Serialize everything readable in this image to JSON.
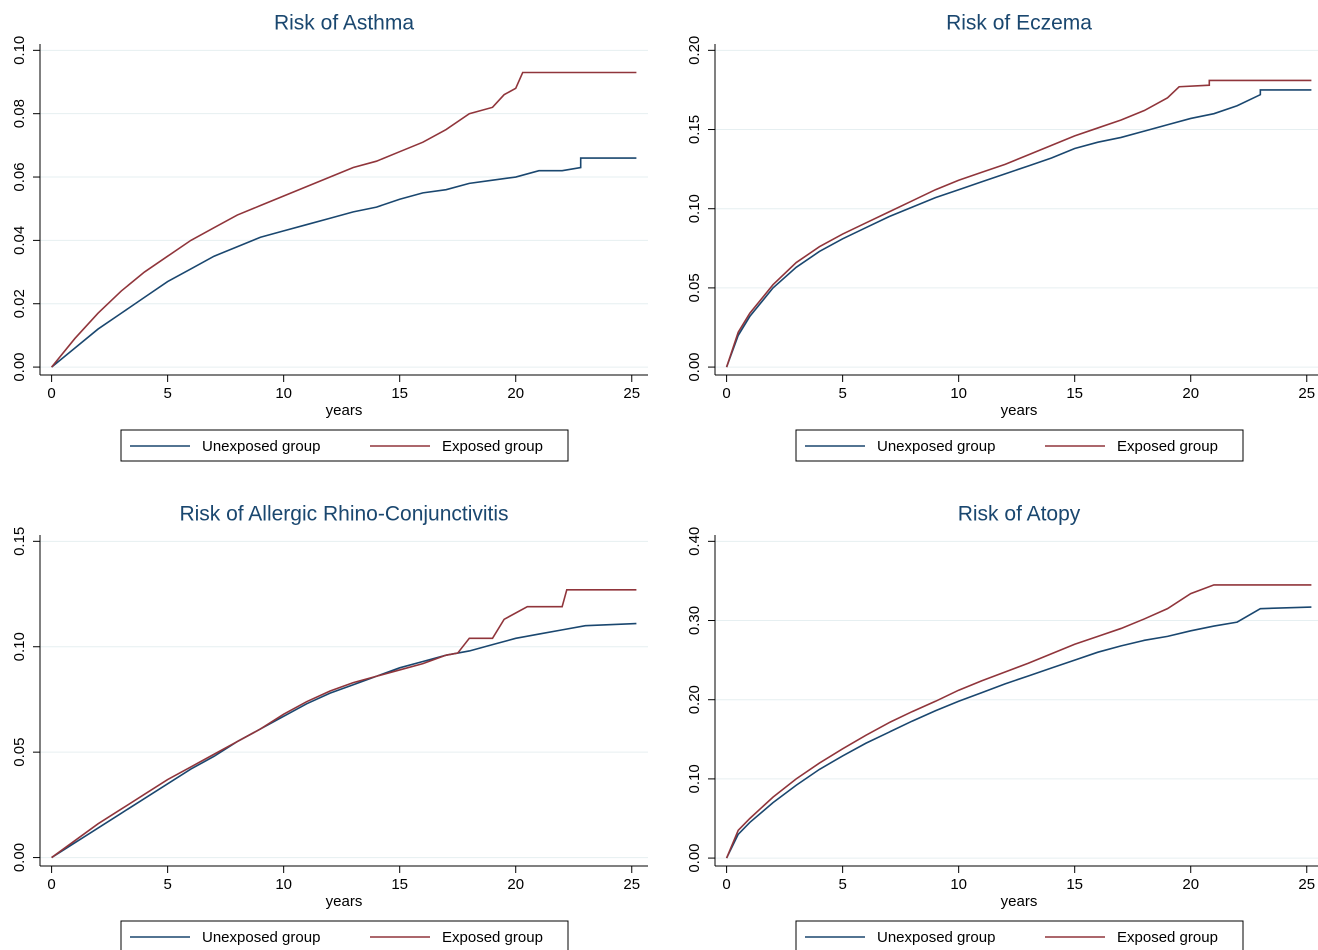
{
  "chart_data": [
    {
      "type": "line",
      "title": "Risk of Asthma",
      "x_label": "years",
      "xlim": [
        -0.5,
        25.7
      ],
      "xticks": [
        0,
        5,
        10,
        15,
        20,
        25
      ],
      "ylim": [
        -0.0025,
        0.102
      ],
      "yticks": [
        {
          "value": 0,
          "label": "0.00"
        },
        {
          "value": 0.02,
          "label": "0.02"
        },
        {
          "value": 0.04,
          "label": "0.04"
        },
        {
          "value": 0.06,
          "label": "0.06"
        },
        {
          "value": 0.08,
          "label": "0.08"
        },
        {
          "value": 0.1,
          "label": "0.10"
        }
      ],
      "grid": true,
      "series": [
        {
          "name": "Unexposed group",
          "color": "#1a476f",
          "x": [
            0,
            1,
            2,
            3,
            4,
            5,
            6,
            7,
            8,
            9,
            10,
            11,
            12,
            13,
            14,
            15,
            16,
            17,
            18,
            19,
            20,
            21,
            22,
            22.8,
            22.8,
            25.2
          ],
          "values": [
            0,
            0.006,
            0.012,
            0.017,
            0.022,
            0.027,
            0.031,
            0.035,
            0.038,
            0.041,
            0.043,
            0.045,
            0.047,
            0.049,
            0.0505,
            0.053,
            0.055,
            0.056,
            0.058,
            0.059,
            0.06,
            0.062,
            0.062,
            0.063,
            0.066,
            0.066
          ]
        },
        {
          "name": "Exposed group",
          "color": "#90353b",
          "x": [
            0,
            1,
            2,
            3,
            4,
            5,
            6,
            7,
            8,
            9,
            10,
            11,
            12,
            13,
            14,
            15,
            16,
            17,
            18,
            19,
            19.5,
            20,
            20.3,
            25.2
          ],
          "values": [
            0,
            0.009,
            0.017,
            0.024,
            0.03,
            0.035,
            0.04,
            0.044,
            0.048,
            0.051,
            0.054,
            0.057,
            0.06,
            0.063,
            0.065,
            0.068,
            0.071,
            0.075,
            0.08,
            0.082,
            0.086,
            0.088,
            0.093,
            0.093
          ]
        }
      ]
    },
    {
      "type": "line",
      "title": "Risk of Eczema",
      "x_label": "years",
      "xlim": [
        -0.5,
        25.7
      ],
      "xticks": [
        0,
        5,
        10,
        15,
        20,
        25
      ],
      "ylim": [
        -0.005,
        0.204
      ],
      "yticks": [
        {
          "value": 0,
          "label": "0.00"
        },
        {
          "value": 0.05,
          "label": "0.05"
        },
        {
          "value": 0.1,
          "label": "0.10"
        },
        {
          "value": 0.15,
          "label": "0.15"
        },
        {
          "value": 0.2,
          "label": "0.20"
        }
      ],
      "grid": true,
      "series": [
        {
          "name": "Unexposed group",
          "color": "#1a476f",
          "x": [
            0,
            0.5,
            1,
            2,
            3,
            4,
            5,
            6,
            7,
            8,
            9,
            10,
            11,
            12,
            13,
            14,
            15,
            16,
            17,
            18,
            19,
            20,
            21,
            22,
            23,
            23,
            25.2
          ],
          "values": [
            0,
            0.02,
            0.032,
            0.05,
            0.063,
            0.073,
            0.081,
            0.088,
            0.095,
            0.101,
            0.107,
            0.112,
            0.117,
            0.122,
            0.127,
            0.132,
            0.138,
            0.142,
            0.145,
            0.149,
            0.153,
            0.157,
            0.16,
            0.165,
            0.172,
            0.175,
            0.175
          ]
        },
        {
          "name": "Exposed group",
          "color": "#90353b",
          "x": [
            0,
            0.5,
            1,
            2,
            3,
            4,
            5,
            6,
            7,
            8,
            9,
            10,
            11,
            12,
            13,
            14,
            15,
            16,
            17,
            18,
            19,
            19.5,
            20.8,
            20.8,
            25.2
          ],
          "values": [
            0,
            0.022,
            0.034,
            0.052,
            0.066,
            0.076,
            0.084,
            0.091,
            0.098,
            0.105,
            0.112,
            0.118,
            0.123,
            0.128,
            0.134,
            0.14,
            0.146,
            0.151,
            0.156,
            0.162,
            0.17,
            0.177,
            0.178,
            0.181,
            0.181
          ]
        }
      ]
    },
    {
      "type": "line",
      "title": "Risk of Allergic Rhino-Conjunctivitis",
      "x_label": "years",
      "xlim": [
        -0.5,
        25.7
      ],
      "xticks": [
        0,
        5,
        10,
        15,
        20,
        25
      ],
      "ylim": [
        -0.004,
        0.153
      ],
      "yticks": [
        {
          "value": 0,
          "label": "0.00"
        },
        {
          "value": 0.05,
          "label": "0.05"
        },
        {
          "value": 0.1,
          "label": "0.10"
        },
        {
          "value": 0.15,
          "label": "0.15"
        }
      ],
      "grid": true,
      "series": [
        {
          "name": "Unexposed group",
          "color": "#1a476f",
          "x": [
            0,
            1,
            2,
            3,
            4,
            5,
            6,
            7,
            8,
            9,
            10,
            11,
            12,
            13,
            14,
            15,
            16,
            17,
            18,
            19,
            20,
            21,
            22,
            23,
            25.2
          ],
          "values": [
            0,
            0.007,
            0.014,
            0.021,
            0.028,
            0.035,
            0.042,
            0.048,
            0.055,
            0.061,
            0.067,
            0.073,
            0.078,
            0.082,
            0.086,
            0.09,
            0.093,
            0.096,
            0.098,
            0.101,
            0.104,
            0.106,
            0.108,
            0.11,
            0.111
          ]
        },
        {
          "name": "Exposed group",
          "color": "#90353b",
          "x": [
            0,
            1,
            2,
            3,
            4,
            5,
            6,
            7,
            8,
            9,
            10,
            11,
            12,
            13,
            14,
            15,
            16,
            17,
            17.5,
            18,
            19,
            19.5,
            20.5,
            22,
            22.2,
            25.2
          ],
          "values": [
            0,
            0.008,
            0.016,
            0.023,
            0.03,
            0.037,
            0.043,
            0.049,
            0.055,
            0.061,
            0.068,
            0.074,
            0.079,
            0.083,
            0.086,
            0.089,
            0.092,
            0.096,
            0.097,
            0.104,
            0.104,
            0.113,
            0.119,
            0.119,
            0.127,
            0.127
          ]
        }
      ]
    },
    {
      "type": "line",
      "title": "Risk of Atopy",
      "x_label": "years",
      "xlim": [
        -0.5,
        25.7
      ],
      "xticks": [
        0,
        5,
        10,
        15,
        20,
        25
      ],
      "ylim": [
        -0.01,
        0.408
      ],
      "yticks": [
        {
          "value": 0,
          "label": "0.00"
        },
        {
          "value": 0.1,
          "label": "0.10"
        },
        {
          "value": 0.2,
          "label": "0.20"
        },
        {
          "value": 0.3,
          "label": "0.30"
        },
        {
          "value": 0.4,
          "label": "0.40"
        }
      ],
      "grid": true,
      "series": [
        {
          "name": "Unexposed group",
          "color": "#1a476f",
          "x": [
            0,
            0.5,
            1,
            2,
            3,
            4,
            5,
            6,
            7,
            8,
            9,
            10,
            11,
            12,
            13,
            14,
            15,
            16,
            17,
            18,
            19,
            20,
            21,
            22,
            23,
            25.2
          ],
          "values": [
            0,
            0.03,
            0.045,
            0.07,
            0.092,
            0.112,
            0.129,
            0.145,
            0.159,
            0.173,
            0.186,
            0.198,
            0.209,
            0.22,
            0.23,
            0.24,
            0.25,
            0.26,
            0.268,
            0.275,
            0.28,
            0.287,
            0.293,
            0.298,
            0.315,
            0.317
          ]
        },
        {
          "name": "Exposed group",
          "color": "#90353b",
          "x": [
            0,
            0.5,
            1,
            2,
            3,
            4,
            5,
            6,
            7,
            8,
            9,
            10,
            11,
            12,
            13,
            14,
            15,
            16,
            17,
            18,
            19,
            20,
            21,
            25.2
          ],
          "values": [
            0,
            0.035,
            0.05,
            0.077,
            0.1,
            0.12,
            0.138,
            0.155,
            0.171,
            0.185,
            0.198,
            0.212,
            0.224,
            0.235,
            0.246,
            0.258,
            0.27,
            0.28,
            0.29,
            0.302,
            0.315,
            0.334,
            0.345,
            0.345
          ]
        }
      ]
    }
  ]
}
